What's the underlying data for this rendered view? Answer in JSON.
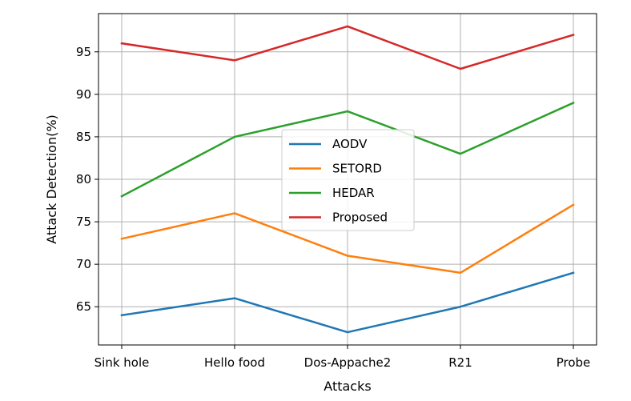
{
  "chart_data": {
    "type": "line",
    "title": "",
    "xlabel": "Attacks",
    "ylabel": "Attack Detection(%)",
    "categories": [
      "Sink hole",
      "Hello food",
      "Dos-Appache2",
      "R21",
      "Probe"
    ],
    "ylim": [
      60.5,
      99.5
    ],
    "yticks": [
      65,
      70,
      75,
      80,
      85,
      90,
      95
    ],
    "grid": true,
    "legend_position": "center",
    "series": [
      {
        "name": "AODV",
        "color": "#1f77b4",
        "values": [
          64,
          66,
          62,
          65,
          69
        ]
      },
      {
        "name": "SETORD",
        "color": "#ff7f0e",
        "values": [
          73,
          76,
          71,
          69,
          77
        ]
      },
      {
        "name": "HEDAR",
        "color": "#2ca02c",
        "values": [
          78,
          85,
          88,
          83,
          89
        ]
      },
      {
        "name": "Proposed",
        "color": "#d62728",
        "values": [
          96,
          94,
          98,
          93,
          97
        ]
      }
    ]
  }
}
